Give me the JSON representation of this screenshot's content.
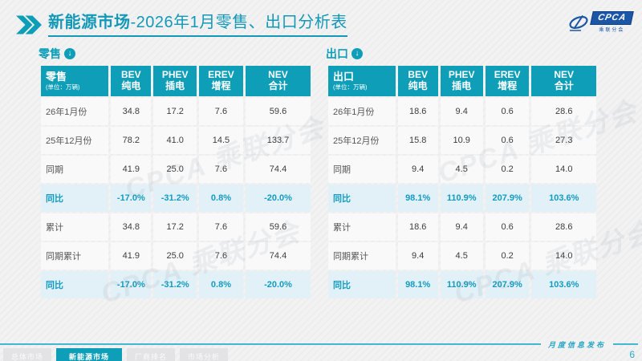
{
  "colors": {
    "accent": "#0e9eb8",
    "rate_bg": "#e2f1f8",
    "rate_text": "#129bc2",
    "logo_blue": "#1b57a6",
    "footer_line": "#45b6d0"
  },
  "header": {
    "title_bold": "新能源市场",
    "title_rest": "-2026年1月零售、出口分析表",
    "logo": {
      "name": "CPCA",
      "subtitle": "乘联分会"
    }
  },
  "tables": {
    "retail": {
      "section_label": "零售",
      "corner_title": "零售",
      "corner_unit": "(单位：万辆)",
      "columns": [
        {
          "en": "BEV",
          "zh": "纯电"
        },
        {
          "en": "PHEV",
          "zh": "插电"
        },
        {
          "en": "EREV",
          "zh": "增程"
        },
        {
          "en": "NEV",
          "zh": "合计"
        }
      ],
      "rows": [
        {
          "label": "26年1月份",
          "type": "data",
          "values": [
            "34.8",
            "17.2",
            "7.6",
            "59.6"
          ]
        },
        {
          "label": "25年12月份",
          "type": "data",
          "values": [
            "78.2",
            "41.0",
            "14.5",
            "133.7"
          ]
        },
        {
          "label": "同期",
          "type": "data",
          "values": [
            "41.9",
            "25.0",
            "7.6",
            "74.4"
          ]
        },
        {
          "label": "同比",
          "type": "rate",
          "values": [
            "-17.0%",
            "-31.2%",
            "0.8%",
            "-20.0%"
          ]
        },
        {
          "label": "累计",
          "type": "data",
          "values": [
            "34.8",
            "17.2",
            "7.6",
            "59.6"
          ]
        },
        {
          "label": "同期累计",
          "type": "data",
          "values": [
            "41.9",
            "25.0",
            "7.6",
            "74.4"
          ]
        },
        {
          "label": "同比",
          "type": "rate",
          "values": [
            "-17.0%",
            "-31.2%",
            "0.8%",
            "-20.0%"
          ]
        }
      ]
    },
    "export": {
      "section_label": "出口",
      "corner_title": "出口",
      "corner_unit": "(单位：万辆)",
      "columns": [
        {
          "en": "BEV",
          "zh": "纯电"
        },
        {
          "en": "PHEV",
          "zh": "插电"
        },
        {
          "en": "EREV",
          "zh": "增程"
        },
        {
          "en": "NEV",
          "zh": "合计"
        }
      ],
      "rows": [
        {
          "label": "26年1月份",
          "type": "data",
          "values": [
            "18.6",
            "9.4",
            "0.6",
            "28.6"
          ]
        },
        {
          "label": "25年12月份",
          "type": "data",
          "values": [
            "15.8",
            "10.9",
            "0.6",
            "27.3"
          ]
        },
        {
          "label": "同期",
          "type": "data",
          "values": [
            "9.4",
            "4.5",
            "0.2",
            "14.0"
          ]
        },
        {
          "label": "同比",
          "type": "rate",
          "values": [
            "98.1%",
            "110.9%",
            "207.9%",
            "103.6%"
          ]
        },
        {
          "label": "累计",
          "type": "data",
          "values": [
            "18.6",
            "9.4",
            "0.6",
            "28.6"
          ]
        },
        {
          "label": "同期累计",
          "type": "data",
          "values": [
            "9.4",
            "4.5",
            "0.2",
            "14.0"
          ]
        },
        {
          "label": "同比",
          "type": "rate",
          "values": [
            "98.1%",
            "110.9%",
            "207.9%",
            "103.6%"
          ]
        }
      ]
    }
  },
  "footer": {
    "ribbon_text": "月度信息发布",
    "page_number": "6",
    "tabs": [
      {
        "label": "总体市场",
        "active": false
      },
      {
        "label": "新能源市场",
        "active": true
      },
      {
        "label": "厂商排名",
        "active": false
      },
      {
        "label": "市场分析",
        "active": false
      }
    ]
  },
  "watermark_text": "CPCA 乘联分会"
}
